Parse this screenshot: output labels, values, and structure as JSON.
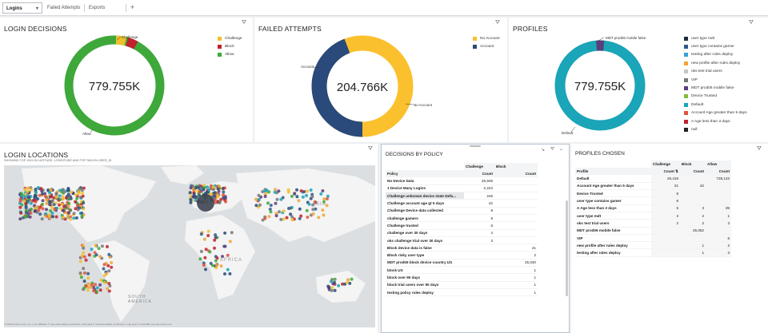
{
  "tabs": [
    {
      "label": "Logins",
      "active": true
    },
    {
      "label": "Failed Attempts",
      "active": false
    },
    {
      "label": "Exports",
      "active": false
    }
  ],
  "add_tab": "+",
  "filter_icon": "filter-icon",
  "login_decisions": {
    "title": "LOGIN DECISIONS",
    "total": "779.755K",
    "legend": [
      {
        "label": "Challenge",
        "color": "#f0c02f"
      },
      {
        "label": "Block",
        "color": "#c0212a"
      },
      {
        "label": "Allow",
        "color": "#3ea83a"
      }
    ],
    "callouts": {
      "challenge": "Challenge",
      "allow": "Allow"
    }
  },
  "failed_attempts": {
    "title": "FAILED ATTEMPTS",
    "total": "204.766K",
    "legend": [
      {
        "label": "No Account",
        "color": "#fbc02d"
      },
      {
        "label": "Account",
        "color": "#294a7a"
      }
    ],
    "callouts": {
      "account": "Account",
      "no_account": "No Account"
    }
  },
  "profiles": {
    "title": "PROFILES",
    "total": "779.755K",
    "legend": [
      {
        "label": "user type mdt",
        "color": "#1f2b3a"
      },
      {
        "label": "user type contains gamer",
        "color": "#2e5a8a"
      },
      {
        "label": "testing after rules deploy",
        "color": "#3aa0d8"
      },
      {
        "label": "new profile after rules deploy",
        "color": "#f2a33a"
      },
      {
        "label": "oks test trial users",
        "color": "#c7c7c7"
      },
      {
        "label": "VIP",
        "color": "#777777"
      },
      {
        "label": "MDT prod06 mobile false",
        "color": "#5a3d7a"
      },
      {
        "label": "Device Trusted",
        "color": "#7fbe3a"
      },
      {
        "label": "Default",
        "color": "#1aa5b8"
      },
      {
        "label": "Account Age greater than 5 days",
        "color": "#e2533a"
      },
      {
        "label": "A Age less than 3 days",
        "color": "#c0212a"
      },
      {
        "label": "null",
        "color": "#222222"
      }
    ],
    "callouts": {
      "top": "MDT prod06 mobile false",
      "default": "Default"
    }
  },
  "login_locations": {
    "title": "LOGIN LOCATIONS",
    "subtitle": "SHOWING TOP 1524 IN LATITUDE, LONGITUDE AND TOP 3815 IN USER_ID",
    "labels": {
      "asia": "ASIA",
      "africa": "AFRICA",
      "south_america": "SOUTH AMERICA"
    },
    "attribution": "© 2019 Amazon.com, Inc. or its affiliates. © OpenStreetMap contributors. Map data © OpenStreetMap contributors, map layer © CartoDB, see http://carto.com"
  },
  "decisions_by_policy": {
    "title": "DECISIONS BY POLICY",
    "col_groups": [
      "Challenge",
      "Block"
    ],
    "col_policy": "Policy",
    "col_count": "Count",
    "rows": [
      {
        "policy": "No Device Data",
        "challenge": "25,949",
        "block": ""
      },
      {
        "policy": "1 Device Many Logins",
        "challenge": "2,222",
        "block": ""
      },
      {
        "policy": "Challenge unknown device state Defa...",
        "challenge": "245",
        "block": ""
      },
      {
        "policy": "Challenge account age gt 5 days",
        "challenge": "42",
        "block": ""
      },
      {
        "policy": "Challenge Device data collected",
        "challenge": "8",
        "block": ""
      },
      {
        "policy": "challenge gamers",
        "challenge": "8",
        "block": ""
      },
      {
        "policy": "Challenge trusted",
        "challenge": "6",
        "block": ""
      },
      {
        "policy": "challenge over 30 days",
        "challenge": "4",
        "block": ""
      },
      {
        "policy": "oks challenge trial over 30 days",
        "challenge": "3",
        "block": ""
      },
      {
        "policy": "Block device data is false",
        "challenge": "",
        "block": "21"
      },
      {
        "policy": "Block risky user type",
        "challenge": "",
        "block": "2"
      },
      {
        "policy": "MDT prod06 block device country US",
        "challenge": "",
        "block": "25,040"
      },
      {
        "policy": "block US",
        "challenge": "",
        "block": "1"
      },
      {
        "policy": "block over 90 days",
        "challenge": "",
        "block": "1"
      },
      {
        "policy": "block trial users over 90 days",
        "challenge": "",
        "block": "1"
      },
      {
        "policy": "testing policy rules deploy",
        "challenge": "",
        "block": "1"
      }
    ]
  },
  "profiles_chosen": {
    "title": "PROFILES CHOSEN",
    "col_groups": [
      "Challenge",
      "Block",
      "Allow"
    ],
    "col_profile": "Profile",
    "col_count": "Count",
    "rows": [
      {
        "profile": "Default",
        "challenge": "26,419",
        "block": "",
        "allow": "728,132"
      },
      {
        "profile": "Account Age greater than 5 days",
        "challenge": "21",
        "block": "42",
        "allow": ""
      },
      {
        "profile": "Device Trusted",
        "challenge": "8",
        "block": "",
        "allow": ""
      },
      {
        "profile": "user type contains gamer",
        "challenge": "8",
        "block": "",
        "allow": ""
      },
      {
        "profile": "A Age less than 3 days",
        "challenge": "5",
        "block": "3",
        "allow": "39"
      },
      {
        "profile": "user type mdt",
        "challenge": "3",
        "block": "2",
        "allow": "1"
      },
      {
        "profile": "oks test trial users",
        "challenge": "2",
        "block": "2",
        "allow": "3"
      },
      {
        "profile": "MDT prod06 mobile false",
        "challenge": "",
        "block": "25,052",
        "allow": ""
      },
      {
        "profile": "VIP",
        "challenge": "",
        "block": "",
        "allow": "6"
      },
      {
        "profile": "new profile after rules deploy",
        "challenge": "",
        "block": "1",
        "allow": "2"
      },
      {
        "profile": "testing after rules deploy",
        "challenge": "",
        "block": "1",
        "allow": "3"
      }
    ]
  }
}
